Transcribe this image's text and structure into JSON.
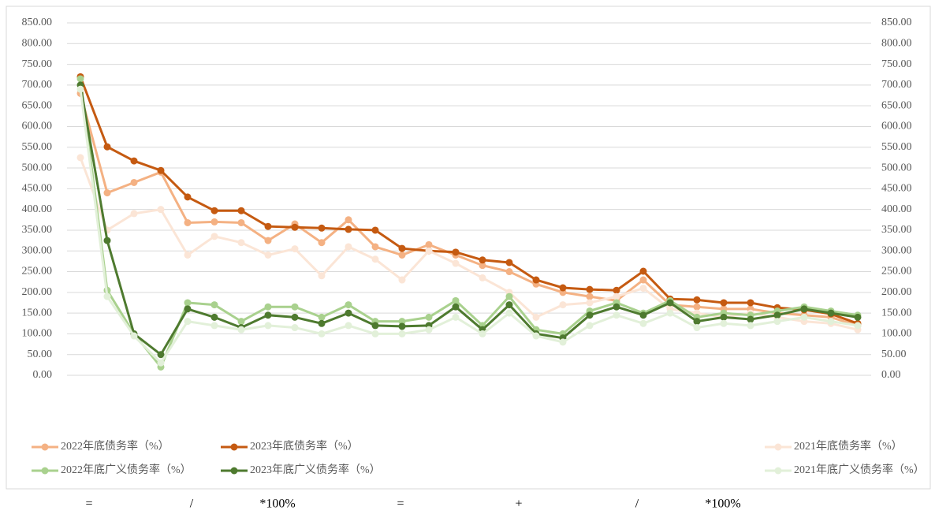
{
  "chart_data": {
    "type": "line",
    "categories": [
      null,
      null,
      null,
      null,
      null,
      null,
      null,
      null,
      null,
      null,
      null,
      null,
      null,
      null,
      null,
      null,
      null,
      null,
      null,
      null,
      null,
      null,
      null,
      null,
      null,
      null,
      null,
      null,
      null,
      null
    ],
    "series": [
      {
        "name": "2022年底债务率（%）",
        "color": "#f4b183",
        "values": [
          680,
          440,
          465,
          490,
          368,
          370,
          368,
          325,
          365,
          320,
          375,
          310,
          290,
          315,
          290,
          265,
          250,
          220,
          200,
          190,
          180,
          230,
          170,
          165,
          160,
          160,
          150,
          145,
          140,
          120
        ]
      },
      {
        "name": "2023年底债务率（%）",
        "color": "#c55a11",
        "values": [
          720,
          551,
          517,
          494,
          430,
          397,
          397,
          359,
          357,
          355,
          352,
          350,
          306,
          300,
          297,
          278,
          272,
          230,
          211,
          207,
          205,
          251,
          184,
          182,
          175,
          175,
          163,
          158,
          148,
          125
        ]
      },
      {
        "name": "2021年底债务率（%）",
        "color": "#fbe5d6",
        "values": [
          525,
          350,
          390,
          400,
          290,
          335,
          320,
          290,
          305,
          240,
          310,
          280,
          230,
          300,
          270,
          235,
          200,
          140,
          170,
          175,
          190,
          210,
          160,
          150,
          140,
          150,
          140,
          130,
          125,
          110
        ]
      },
      {
        "name": "2022年底广义债务率（%）",
        "color": "#a9d18e",
        "values": [
          715,
          205,
          100,
          20,
          175,
          170,
          130,
          165,
          165,
          140,
          170,
          130,
          130,
          140,
          180,
          120,
          190,
          110,
          100,
          155,
          175,
          150,
          180,
          140,
          150,
          145,
          155,
          165,
          155,
          145
        ]
      },
      {
        "name": "2023年底广义债务率（%）",
        "color": "#4e7a2f",
        "values": [
          700,
          325,
          100,
          50,
          160,
          140,
          115,
          145,
          140,
          125,
          150,
          120,
          118,
          120,
          165,
          110,
          170,
          100,
          90,
          145,
          165,
          145,
          175,
          130,
          140,
          135,
          145,
          160,
          150,
          140
        ]
      },
      {
        "name": "2021年底广义债务率（%）",
        "color": "#e2f0d9",
        "values": [
          690,
          190,
          95,
          30,
          130,
          120,
          110,
          120,
          115,
          100,
          120,
          100,
          100,
          110,
          140,
          100,
          150,
          95,
          80,
          120,
          145,
          125,
          150,
          115,
          125,
          120,
          130,
          140,
          130,
          120
        ]
      }
    ],
    "ylim": [
      0,
      850
    ],
    "yticks": [
      {
        "value": 0,
        "label": "0.00"
      },
      {
        "value": 50,
        "label": "50.00"
      },
      {
        "value": 100,
        "label": "100.00"
      },
      {
        "value": 150,
        "label": "150.00"
      },
      {
        "value": 200,
        "label": "200.00"
      },
      {
        "value": 250,
        "label": "250.00"
      },
      {
        "value": 300,
        "label": "300.00"
      },
      {
        "value": 350,
        "label": "350.00"
      },
      {
        "value": 400,
        "label": "400.00"
      },
      {
        "value": 450,
        "label": "450.00"
      },
      {
        "value": 500,
        "label": "500.00"
      },
      {
        "value": 550,
        "label": "550.00"
      },
      {
        "value": 600,
        "label": "600.00"
      },
      {
        "value": 650,
        "label": "650.00"
      },
      {
        "value": 700,
        "label": "700.00"
      },
      {
        "value": 750,
        "label": "750.00"
      },
      {
        "value": 800,
        "label": "800.00"
      },
      {
        "value": 850,
        "label": "850.00"
      }
    ],
    "y2lim": [
      0,
      850
    ],
    "y2ticks": [
      {
        "value": 0,
        "label": "0.00"
      },
      {
        "value": 50,
        "label": "50.00"
      },
      {
        "value": 100,
        "label": "100.00"
      },
      {
        "value": 150,
        "label": "150.00"
      },
      {
        "value": 200,
        "label": "200.00"
      },
      {
        "value": 250,
        "label": "250.00"
      },
      {
        "value": 300,
        "label": "300.00"
      },
      {
        "value": 350,
        "label": "350.00"
      },
      {
        "value": 400,
        "label": "400.00"
      },
      {
        "value": 450,
        "label": "450.00"
      },
      {
        "value": 500,
        "label": "500.00"
      },
      {
        "value": 550,
        "label": "550.00"
      },
      {
        "value": 600,
        "label": "600.00"
      },
      {
        "value": 650,
        "label": "650.00"
      },
      {
        "value": 700,
        "label": "700.00"
      },
      {
        "value": 750,
        "label": "750.00"
      },
      {
        "value": 800,
        "label": "800.00"
      },
      {
        "value": 850,
        "label": "850.00"
      }
    ],
    "grid": true,
    "legend": "bottom"
  },
  "formula": [
    "=",
    "/",
    "*100%",
    "=",
    "+",
    "/",
    "*100%"
  ]
}
